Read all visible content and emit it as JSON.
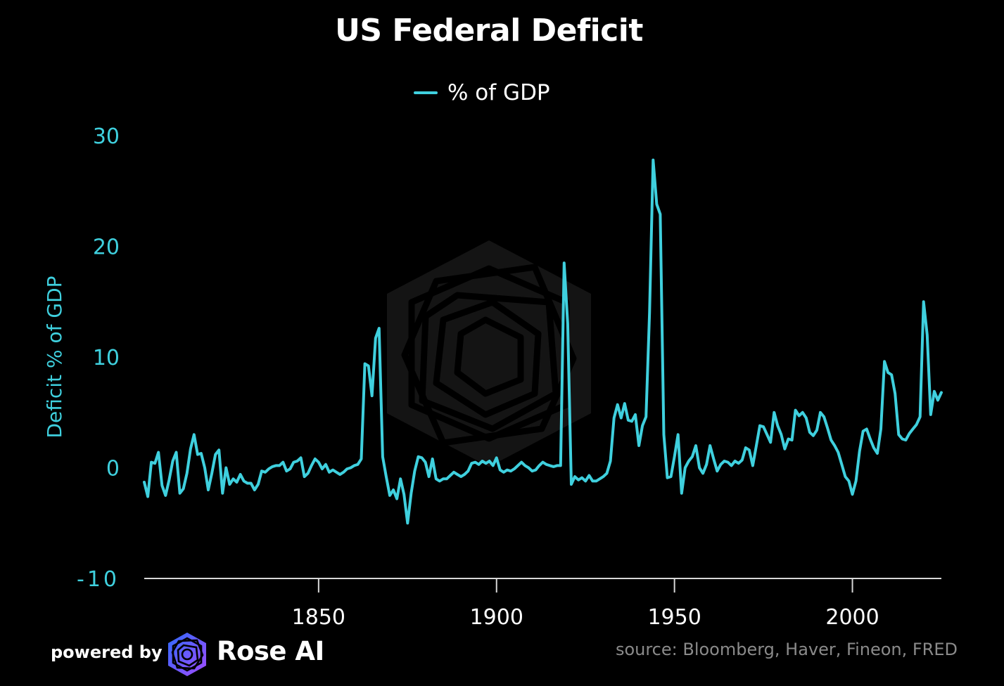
{
  "chart_data": {
    "type": "line",
    "title": "US Federal Deficit",
    "ylabel": "Deficit % of GDP",
    "xlabel": "",
    "xlim": [
      1801,
      2025
    ],
    "ylim": [
      -10,
      30
    ],
    "yticks": [
      -10,
      0,
      10,
      20,
      30
    ],
    "xticks": [
      1850,
      1900,
      1950,
      2000
    ],
    "grid": false,
    "legend_position": "top-center",
    "series": [
      {
        "name": "% of GDP",
        "color": "#3fd0de",
        "points": [
          [
            1801,
            -1.3
          ],
          [
            1802,
            -2.6
          ],
          [
            1803,
            0.5
          ],
          [
            1804,
            0.4
          ],
          [
            1805,
            1.4
          ],
          [
            1806,
            -1.6
          ],
          [
            1807,
            -2.5
          ],
          [
            1808,
            -1.1
          ],
          [
            1809,
            0.6
          ],
          [
            1810,
            1.4
          ],
          [
            1811,
            -2.3
          ],
          [
            1812,
            -1.9
          ],
          [
            1813,
            -0.5
          ],
          [
            1814,
            1.7
          ],
          [
            1815,
            3.0
          ],
          [
            1816,
            1.2
          ],
          [
            1817,
            1.3
          ],
          [
            1818,
            0.0
          ],
          [
            1819,
            -2.0
          ],
          [
            1820,
            -0.5
          ],
          [
            1821,
            1.2
          ],
          [
            1822,
            1.6
          ],
          [
            1823,
            -2.3
          ],
          [
            1824,
            0.0
          ],
          [
            1825,
            -1.5
          ],
          [
            1826,
            -1.0
          ],
          [
            1827,
            -1.3
          ],
          [
            1828,
            -0.6
          ],
          [
            1829,
            -1.2
          ],
          [
            1830,
            -1.4
          ],
          [
            1831,
            -1.4
          ],
          [
            1832,
            -2.0
          ],
          [
            1833,
            -1.5
          ],
          [
            1834,
            -0.3
          ],
          [
            1835,
            -0.4
          ],
          [
            1836,
            -0.1
          ],
          [
            1837,
            0.1
          ],
          [
            1838,
            0.2
          ],
          [
            1839,
            0.2
          ],
          [
            1840,
            0.5
          ],
          [
            1841,
            -0.3
          ],
          [
            1842,
            -0.1
          ],
          [
            1843,
            0.5
          ],
          [
            1844,
            0.6
          ],
          [
            1845,
            0.9
          ],
          [
            1846,
            -0.8
          ],
          [
            1847,
            -0.5
          ],
          [
            1848,
            0.2
          ],
          [
            1849,
            0.8
          ],
          [
            1850,
            0.5
          ],
          [
            1851,
            -0.1
          ],
          [
            1852,
            0.3
          ],
          [
            1853,
            -0.4
          ],
          [
            1854,
            -0.2
          ],
          [
            1855,
            -0.4
          ],
          [
            1856,
            -0.6
          ],
          [
            1857,
            -0.4
          ],
          [
            1858,
            -0.1
          ],
          [
            1859,
            0.0
          ],
          [
            1860,
            0.2
          ],
          [
            1861,
            0.3
          ],
          [
            1862,
            0.8
          ],
          [
            1863,
            9.4
          ],
          [
            1864,
            9.2
          ],
          [
            1865,
            6.5
          ],
          [
            1866,
            11.7
          ],
          [
            1867,
            12.6
          ],
          [
            1868,
            1.0
          ],
          [
            1869,
            -0.8
          ],
          [
            1870,
            -2.5
          ],
          [
            1871,
            -2.0
          ],
          [
            1872,
            -2.8
          ],
          [
            1873,
            -1.0
          ],
          [
            1874,
            -2.4
          ],
          [
            1875,
            -5.0
          ],
          [
            1876,
            -2.3
          ],
          [
            1877,
            -0.3
          ],
          [
            1878,
            1.0
          ],
          [
            1879,
            0.9
          ],
          [
            1880,
            0.5
          ],
          [
            1881,
            -0.8
          ],
          [
            1882,
            0.8
          ],
          [
            1883,
            -1.0
          ],
          [
            1884,
            -1.2
          ],
          [
            1885,
            -1.0
          ],
          [
            1886,
            -1.0
          ],
          [
            1887,
            -0.7
          ],
          [
            1888,
            -0.4
          ],
          [
            1889,
            -0.6
          ],
          [
            1890,
            -0.8
          ],
          [
            1891,
            -0.6
          ],
          [
            1892,
            -0.3
          ],
          [
            1893,
            0.4
          ],
          [
            1894,
            0.5
          ],
          [
            1895,
            0.3
          ],
          [
            1896,
            0.6
          ],
          [
            1897,
            0.4
          ],
          [
            1898,
            0.6
          ],
          [
            1899,
            0.2
          ],
          [
            1900,
            0.9
          ],
          [
            1901,
            -0.2
          ],
          [
            1902,
            -0.4
          ],
          [
            1903,
            -0.2
          ],
          [
            1904,
            -0.3
          ],
          [
            1905,
            -0.1
          ],
          [
            1906,
            0.2
          ],
          [
            1907,
            0.5
          ],
          [
            1908,
            0.2
          ],
          [
            1909,
            0.0
          ],
          [
            1910,
            -0.3
          ],
          [
            1911,
            -0.2
          ],
          [
            1912,
            0.2
          ],
          [
            1913,
            0.5
          ],
          [
            1914,
            0.3
          ],
          [
            1915,
            0.2
          ],
          [
            1916,
            0.1
          ],
          [
            1917,
            0.2
          ],
          [
            1918,
            0.2
          ],
          [
            1919,
            18.5
          ],
          [
            1920,
            13.0
          ],
          [
            1921,
            -1.5
          ],
          [
            1922,
            -0.8
          ],
          [
            1923,
            -1.1
          ],
          [
            1924,
            -0.9
          ],
          [
            1925,
            -1.2
          ],
          [
            1926,
            -0.7
          ],
          [
            1927,
            -1.2
          ],
          [
            1928,
            -1.2
          ],
          [
            1929,
            -1.0
          ],
          [
            1930,
            -0.8
          ],
          [
            1931,
            -0.5
          ],
          [
            1932,
            0.6
          ],
          [
            1933,
            4.5
          ],
          [
            1934,
            5.7
          ],
          [
            1935,
            4.5
          ],
          [
            1936,
            5.8
          ],
          [
            1937,
            4.3
          ],
          [
            1938,
            4.2
          ],
          [
            1939,
            4.8
          ],
          [
            1940,
            2.0
          ],
          [
            1941,
            3.8
          ],
          [
            1942,
            4.6
          ],
          [
            1943,
            14.0
          ],
          [
            1944,
            27.8
          ],
          [
            1945,
            23.8
          ],
          [
            1946,
            22.9
          ],
          [
            1947,
            3.0
          ],
          [
            1948,
            -0.9
          ],
          [
            1949,
            -0.8
          ],
          [
            1950,
            1.0
          ],
          [
            1951,
            3.0
          ],
          [
            1952,
            -2.3
          ],
          [
            1953,
            0.0
          ],
          [
            1954,
            0.6
          ],
          [
            1955,
            1.0
          ],
          [
            1956,
            2.0
          ],
          [
            1957,
            0.0
          ],
          [
            1958,
            -0.5
          ],
          [
            1959,
            0.3
          ],
          [
            1960,
            2.0
          ],
          [
            1961,
            0.8
          ],
          [
            1962,
            -0.3
          ],
          [
            1963,
            0.3
          ],
          [
            1964,
            0.6
          ],
          [
            1965,
            0.5
          ],
          [
            1966,
            0.2
          ],
          [
            1967,
            0.6
          ],
          [
            1968,
            0.4
          ],
          [
            1969,
            0.7
          ],
          [
            1970,
            1.8
          ],
          [
            1971,
            1.6
          ],
          [
            1972,
            0.2
          ],
          [
            1973,
            2.0
          ],
          [
            1974,
            3.8
          ],
          [
            1975,
            3.7
          ],
          [
            1976,
            3.0
          ],
          [
            1977,
            2.3
          ],
          [
            1978,
            5.0
          ],
          [
            1979,
            3.8
          ],
          [
            1980,
            3.0
          ],
          [
            1981,
            1.7
          ],
          [
            1982,
            2.6
          ],
          [
            1983,
            2.5
          ],
          [
            1984,
            5.2
          ],
          [
            1985,
            4.7
          ],
          [
            1986,
            5.0
          ],
          [
            1987,
            4.5
          ],
          [
            1988,
            3.2
          ],
          [
            1989,
            2.9
          ],
          [
            1990,
            3.4
          ],
          [
            1991,
            5.0
          ],
          [
            1992,
            4.6
          ],
          [
            1993,
            3.6
          ],
          [
            1994,
            2.5
          ],
          [
            1995,
            2.0
          ],
          [
            1996,
            1.4
          ],
          [
            1997,
            0.3
          ],
          [
            1998,
            -0.8
          ],
          [
            1999,
            -1.2
          ],
          [
            2000,
            -2.4
          ],
          [
            2001,
            -1.2
          ],
          [
            2002,
            1.5
          ],
          [
            2003,
            3.3
          ],
          [
            2004,
            3.5
          ],
          [
            2005,
            2.6
          ],
          [
            2006,
            1.8
          ],
          [
            2007,
            1.3
          ],
          [
            2008,
            3.5
          ],
          [
            2009,
            9.6
          ],
          [
            2010,
            8.6
          ],
          [
            2011,
            8.4
          ],
          [
            2012,
            6.7
          ],
          [
            2013,
            3.0
          ],
          [
            2014,
            2.6
          ],
          [
            2015,
            2.5
          ],
          [
            2016,
            3.1
          ],
          [
            2017,
            3.5
          ],
          [
            2018,
            3.9
          ],
          [
            2019,
            4.6
          ],
          [
            2020,
            15.0
          ],
          [
            2021,
            12.0
          ],
          [
            2022,
            4.8
          ],
          [
            2023,
            6.9
          ],
          [
            2024,
            6.1
          ],
          [
            2025,
            6.8
          ]
        ]
      }
    ]
  },
  "footer": {
    "powered_by": "powered by",
    "brand": "Rose AI",
    "source": "source: Bloomberg, Haver, Fineon, FRED"
  },
  "watermark_icon": "rose-ai-logo-icon"
}
